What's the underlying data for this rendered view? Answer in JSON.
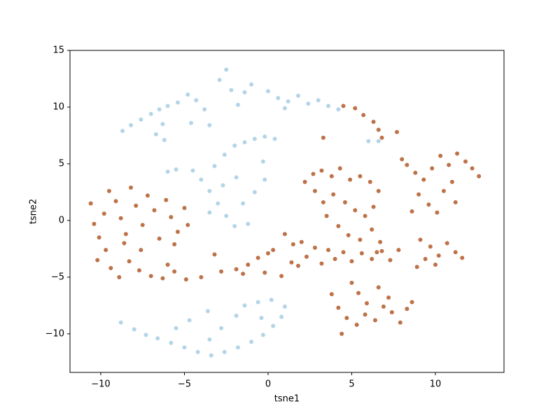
{
  "chart_data": {
    "type": "scatter",
    "xlabel": "tsne1",
    "ylabel": "tsne2",
    "xlim": [
      -11.84,
      14.1
    ],
    "ylim": [
      -13.4,
      15
    ],
    "xticks": [
      {
        "value": -10,
        "label": "−10"
      },
      {
        "value": -5,
        "label": "−5"
      },
      0,
      5,
      10
    ],
    "yticks": [
      {
        "value": -10,
        "label": "−10"
      },
      {
        "value": -5,
        "label": "−5"
      },
      0,
      5,
      10,
      15
    ],
    "grid": false,
    "series": [
      {
        "color": "#a6cee3",
        "x": [
          -8.7,
          -8.2,
          -7.6,
          -7.0,
          -6.5,
          -6.0,
          -5.4,
          -6.3,
          -6.7,
          -6.2,
          -4.8,
          -4.3,
          -3.8,
          -4.6,
          -3.5,
          -2.9,
          -2.5,
          -2.2,
          -1.8,
          -1.4,
          -1.0,
          0.0,
          0.6,
          1.2,
          1.8,
          2.4,
          3.0,
          3.6,
          4.2,
          1.0,
          6.0,
          6.6,
          -6.0,
          -5.5,
          -4.5,
          -4.0,
          -3.5,
          -3.0,
          -2.5,
          -2.0,
          -3.2,
          -2.6,
          -2.0,
          -1.4,
          -0.8,
          -0.2,
          0.4,
          -0.3,
          -0.2,
          -0.8,
          -1.5,
          -1.2,
          -3.5,
          -1.9,
          -2.7,
          -8.8,
          -8.0,
          -7.3,
          -6.6,
          -5.8,
          -5.0,
          -4.2,
          -3.4,
          -2.6,
          -1.8,
          -1.0,
          -0.3,
          0.3,
          0.8,
          1.0,
          0.2,
          -0.6,
          -1.4,
          -3.6,
          -4.7,
          -2.8,
          -1.9,
          -5.5,
          -3.5,
          -0.4
        ],
        "values": [
          7.9,
          8.4,
          8.9,
          9.4,
          9.8,
          10.1,
          10.4,
          8.5,
          7.6,
          7.1,
          11.1,
          10.6,
          9.8,
          8.6,
          8.4,
          12.4,
          13.3,
          11.5,
          10.2,
          11.3,
          12.0,
          11.4,
          10.8,
          10.5,
          11.0,
          10.3,
          10.6,
          10.1,
          9.8,
          9.9,
          7.0,
          7.0,
          4.3,
          4.5,
          4.4,
          3.6,
          2.6,
          1.5,
          0.4,
          -0.5,
          4.8,
          5.8,
          6.6,
          6.9,
          7.2,
          7.4,
          7.2,
          5.2,
          3.6,
          2.5,
          1.5,
          -0.3,
          0.7,
          3.8,
          3.1,
          -9.0,
          -9.6,
          -10.1,
          -10.4,
          -10.8,
          -11.2,
          -11.6,
          -11.9,
          -11.6,
          -11.2,
          -10.7,
          -10.1,
          -9.3,
          -8.5,
          -7.6,
          -7.0,
          -7.2,
          -7.5,
          -8.0,
          -8.8,
          -9.5,
          -8.4,
          -9.5,
          -10.5,
          -8.6
        ]
      },
      {
        "color": "#b15928",
        "x": [
          -10.6,
          -10.4,
          -10.1,
          -9.8,
          -9.5,
          -9.1,
          -8.8,
          -8.5,
          -8.2,
          -7.9,
          -7.5,
          -7.2,
          -6.8,
          -6.5,
          -6.1,
          -5.8,
          -5.4,
          -5.0,
          -4.8,
          -5.6,
          -9.7,
          -10.2,
          -9.4,
          -8.9,
          -8.3,
          -7.7,
          -7.0,
          -6.3,
          -5.6,
          -4.9,
          -6.0,
          -7.6,
          -8.6,
          -4.0,
          -3.2,
          -2.8,
          -1.9,
          -1.2,
          -0.6,
          -0.2,
          0.3,
          0.8,
          1.0,
          1.5,
          1.4,
          2.0,
          2.3,
          2.8,
          3.2,
          3.6,
          4.0,
          4.5,
          5.0,
          5.6,
          6.2,
          6.8,
          7.3,
          7.8,
          2.2,
          2.7,
          3.2,
          3.8,
          4.3,
          4.9,
          5.5,
          6.1,
          6.6,
          6.3,
          5.8,
          5.2,
          4.6,
          3.9,
          3.3,
          2.8,
          3.5,
          4.2,
          4.8,
          5.5,
          6.2,
          6.7,
          6.5,
          4.5,
          5.2,
          5.7,
          6.3,
          6.6,
          6.8,
          7.7,
          3.3,
          8.0,
          8.3,
          8.8,
          9.3,
          9.8,
          10.3,
          10.8,
          11.3,
          11.8,
          12.2,
          12.6,
          9.0,
          9.6,
          10.1,
          10.5,
          11.2,
          11.0,
          8.6,
          9.1,
          9.7,
          10.2,
          10.7,
          11.2,
          11.6,
          10.0,
          9.4,
          8.9,
          3.8,
          4.2,
          4.7,
          5.3,
          5.8,
          5.4,
          5.9,
          6.4,
          6.9,
          7.4,
          7.9,
          8.3,
          8.6,
          6.6,
          4.4,
          7.2,
          5.0,
          -1.5,
          0.0,
          1.8
        ],
        "values": [
          1.5,
          -0.3,
          -1.5,
          0.6,
          2.6,
          1.7,
          0.2,
          -1.2,
          2.9,
          1.3,
          -0.4,
          2.2,
          0.9,
          -1.6,
          1.8,
          0.3,
          -1.0,
          1.1,
          -0.4,
          -2.1,
          -2.6,
          -3.5,
          -4.2,
          -5.0,
          -3.6,
          -4.4,
          -4.9,
          -5.1,
          -4.5,
          -5.2,
          -3.9,
          -2.6,
          -2.0,
          -5.0,
          -3.0,
          -4.5,
          -4.3,
          -3.9,
          -3.3,
          -4.6,
          -2.6,
          -4.9,
          -1.2,
          -2.1,
          -3.7,
          -1.9,
          -3.2,
          -2.4,
          -3.8,
          -2.6,
          -3.4,
          -2.8,
          -3.6,
          -2.9,
          -3.4,
          -2.7,
          -3.5,
          -2.6,
          3.4,
          4.1,
          4.4,
          3.9,
          4.6,
          3.6,
          3.9,
          3.4,
          2.6,
          1.2,
          0.4,
          0.9,
          1.6,
          2.3,
          1.6,
          2.6,
          0.4,
          -0.5,
          -1.3,
          -1.7,
          -0.8,
          -1.9,
          -2.8,
          10.1,
          9.9,
          9.3,
          8.7,
          8.0,
          7.3,
          7.8,
          7.3,
          5.4,
          4.9,
          4.2,
          3.6,
          4.6,
          5.7,
          4.9,
          5.9,
          5.2,
          4.6,
          3.9,
          2.3,
          1.4,
          0.7,
          2.6,
          1.6,
          3.4,
          0.8,
          -1.7,
          -2.3,
          -3.1,
          -2.0,
          -2.8,
          -3.3,
          -3.9,
          -3.4,
          -4.1,
          -6.5,
          -7.7,
          -8.6,
          -9.2,
          -8.3,
          -6.4,
          -7.3,
          -8.8,
          -7.6,
          -8.1,
          -9.0,
          -7.8,
          -7.2,
          -5.9,
          -10.0,
          -6.8,
          -5.5,
          -4.7,
          -2.9,
          -4.0
        ]
      }
    ]
  }
}
